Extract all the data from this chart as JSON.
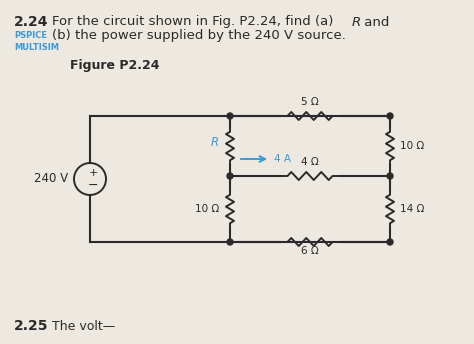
{
  "bg_color": "#ede8e0",
  "wire_color": "#2a2a2a",
  "resistor_color": "#2a2a2a",
  "arrow_color": "#3a9ad9",
  "R_label_color": "#3a9ad9",
  "pspice_color": "#3a9ad9",
  "volt_source": "240 V",
  "current_label": "4 A",
  "r_top": "5 Ω",
  "r_mid_h": "4 Ω",
  "r_bot_h": "6 Ω",
  "r_mid_v": "10 Ω",
  "r_right_top": "10 Ω",
  "r_right_bot": "14 Ω",
  "title_num": "2.24",
  "title_body": "For the circuit shown in Fig. P2.24, find (a) ",
  "title_R": "R",
  "title_end": " and",
  "title_line2": "(b) the power supplied by the 240 V source.",
  "pspice_label": "PSPICE",
  "multisim_label": "MULTISIM",
  "figure_label": "Figure P2.24",
  "bottom_num": "2.25",
  "bottom_text": "The volt..."
}
